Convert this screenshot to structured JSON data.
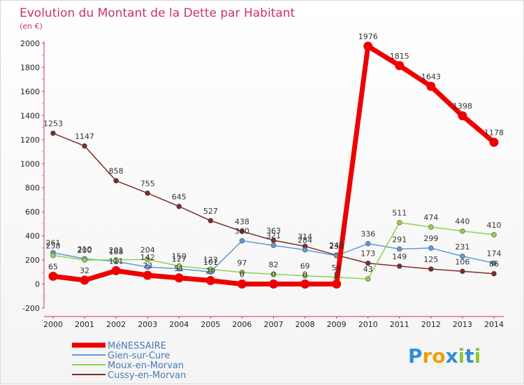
{
  "chart_data": {
    "type": "line",
    "title": "Evolution du Montant de la Dette par Habitant",
    "subtitle": "(en €)",
    "x": [
      "2000",
      "2001",
      "2002",
      "2003",
      "2004",
      "2005",
      "2006",
      "2007",
      "2008",
      "2009",
      "2010",
      "2011",
      "2012",
      "2013",
      "2014"
    ],
    "ylim": [
      -200,
      2000
    ],
    "yticks": [
      -200,
      0,
      200,
      400,
      600,
      800,
      1000,
      1200,
      1400,
      1600,
      1800,
      2000
    ],
    "grid": false,
    "legend_placement": "bottom-left",
    "series": [
      {
        "name": "MéNESSAIRE",
        "color": "#ee0000",
        "values": [
          65,
          32,
          111,
          73,
          51,
          29,
          0,
          0,
          0,
          0,
          1976,
          1815,
          1643,
          1398,
          1178
        ],
        "labels": [
          "65",
          "32",
          "111",
          "73",
          "51",
          "29",
          "0",
          "0",
          "0",
          "0",
          "1976",
          "1815",
          "1643",
          "1398",
          "1178"
        ]
      },
      {
        "name": "Gien-sur-Cure",
        "color": "#5b9bd5",
        "values": [
          261,
          210,
          188,
          142,
          127,
          101,
          360,
          321,
          284,
          235,
          336,
          291,
          299,
          231,
          174
        ],
        "labels": [
          "261",
          "210",
          "188",
          "142",
          "127",
          "101",
          "360",
          "321",
          "284",
          "235",
          "336",
          "291",
          "299",
          "231",
          "174"
        ]
      },
      {
        "name": "Moux-en-Morvan",
        "color": "#92d050",
        "values": [
          238,
          200,
          201,
          204,
          150,
          123,
          97,
          82,
          69,
          56,
          43,
          511,
          474,
          440,
          410
        ],
        "labels": [
          "238",
          "200",
          "201",
          "204",
          "150",
          "123",
          "97",
          "82",
          "69",
          "56",
          "43",
          "511",
          "474",
          "440",
          "410"
        ]
      },
      {
        "name": "Cussy-en-Morvan",
        "color": "#7b2c2c",
        "values": [
          1253,
          1147,
          858,
          755,
          645,
          527,
          438,
          363,
          314,
          240,
          173,
          149,
          125,
          106,
          86
        ],
        "labels": [
          "1253",
          "1147",
          "858",
          "755",
          "645",
          "527",
          "438",
          "363",
          "314",
          "240",
          "173",
          "149",
          "125",
          "106",
          "86"
        ]
      }
    ]
  },
  "logo": {
    "text": "Proxiti"
  }
}
